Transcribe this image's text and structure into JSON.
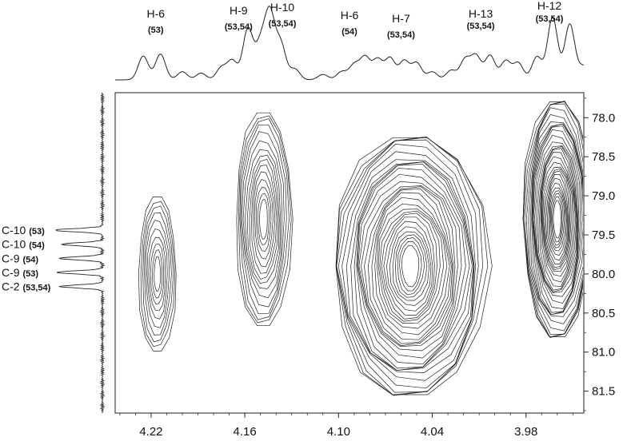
{
  "chart_data": {
    "type": "contour",
    "xlabel": "",
    "ylabel": "",
    "x_reversed": true,
    "x_ticks": [
      4.22,
      4.16,
      4.1,
      4.04,
      3.98
    ],
    "y_ticks": [
      78.0,
      78.5,
      79.0,
      79.5,
      80.0,
      80.5,
      81.0,
      81.5
    ],
    "x_tick_labels": [
      "4.22",
      "4.16",
      "4.10",
      "4.04",
      "3.98"
    ],
    "y_tick_labels": [
      "78.0",
      "78.5",
      "79.0",
      "79.5",
      "80.0",
      "80.5",
      "81.0",
      "81.5"
    ],
    "xlim": [
      4.243,
      3.943
    ],
    "ylim": [
      77.68,
      81.78
    ],
    "top_projection_labels": [
      {
        "name": "H-6",
        "sub": "(53)",
        "x": 4.217
      },
      {
        "name": "H-9",
        "sub": "(53,54)",
        "x": 4.164
      },
      {
        "name": "H-10",
        "sub": "(53,54)",
        "x": 4.136
      },
      {
        "name": "H-6",
        "sub": "(54)",
        "x": 4.093
      },
      {
        "name": "H-7",
        "sub": "(53,54)",
        "x": 4.06
      },
      {
        "name": "H-13",
        "sub": "(53,54)",
        "x": 4.009
      },
      {
        "name": "H-12",
        "sub": "(53,54)",
        "x": 3.965
      }
    ],
    "left_projection_labels": [
      {
        "name": "C-10",
        "sub": "(53)",
        "y": 79.44
      },
      {
        "name": "C-10",
        "sub": "(54)",
        "y": 79.62
      },
      {
        "name": "C-9",
        "sub": "(54)",
        "y": 79.8
      },
      {
        "name": "C-9",
        "sub": "(53)",
        "y": 79.98
      },
      {
        "name": "C-2",
        "sub": "(53,54)",
        "y": 80.16
      }
    ],
    "top_projection_peaks": [
      {
        "x": 4.225,
        "h": 0.35
      },
      {
        "x": 4.214,
        "h": 0.38
      },
      {
        "x": 4.2,
        "h": 0.12
      },
      {
        "x": 4.188,
        "h": 0.1
      },
      {
        "x": 4.175,
        "h": 0.18
      },
      {
        "x": 4.168,
        "h": 0.28
      },
      {
        "x": 4.158,
        "h": 0.75
      },
      {
        "x": 4.15,
        "h": 0.5
      },
      {
        "x": 4.144,
        "h": 0.95
      },
      {
        "x": 4.137,
        "h": 0.52
      },
      {
        "x": 4.128,
        "h": 0.16
      },
      {
        "x": 4.11,
        "h": 0.08
      },
      {
        "x": 4.098,
        "h": 0.12
      },
      {
        "x": 4.09,
        "h": 0.22
      },
      {
        "x": 4.083,
        "h": 0.33
      },
      {
        "x": 4.075,
        "h": 0.3
      },
      {
        "x": 4.067,
        "h": 0.32
      },
      {
        "x": 4.058,
        "h": 0.28
      },
      {
        "x": 4.05,
        "h": 0.25
      },
      {
        "x": 4.04,
        "h": 0.12
      },
      {
        "x": 4.028,
        "h": 0.14
      },
      {
        "x": 4.019,
        "h": 0.3
      },
      {
        "x": 4.012,
        "h": 0.35
      },
      {
        "x": 4.003,
        "h": 0.36
      },
      {
        "x": 3.993,
        "h": 0.28
      },
      {
        "x": 3.985,
        "h": 0.25
      },
      {
        "x": 3.973,
        "h": 0.34
      },
      {
        "x": 3.963,
        "h": 0.92
      },
      {
        "x": 3.952,
        "h": 0.82
      },
      {
        "x": 3.943,
        "h": 0.2
      }
    ],
    "left_projection_peaks": [
      {
        "y": 79.44,
        "h": 1.0
      },
      {
        "y": 79.62,
        "h": 0.85
      },
      {
        "y": 79.8,
        "h": 0.9
      },
      {
        "y": 79.98,
        "h": 0.95
      },
      {
        "y": 80.16,
        "h": 0.88
      }
    ],
    "cross_peaks": [
      {
        "x": 4.216,
        "y": 80.0,
        "rx": 0.012,
        "ry": 1.05,
        "levels": 10
      },
      {
        "x": 4.148,
        "y": 79.3,
        "rx": 0.018,
        "ry": 1.45,
        "levels": 15
      },
      {
        "x": 4.054,
        "y": 79.9,
        "rx": 0.05,
        "ry": 1.75,
        "levels": 30
      },
      {
        "x": 3.96,
        "y": 79.3,
        "rx": 0.022,
        "ry": 1.6,
        "levels": 30
      }
    ]
  }
}
